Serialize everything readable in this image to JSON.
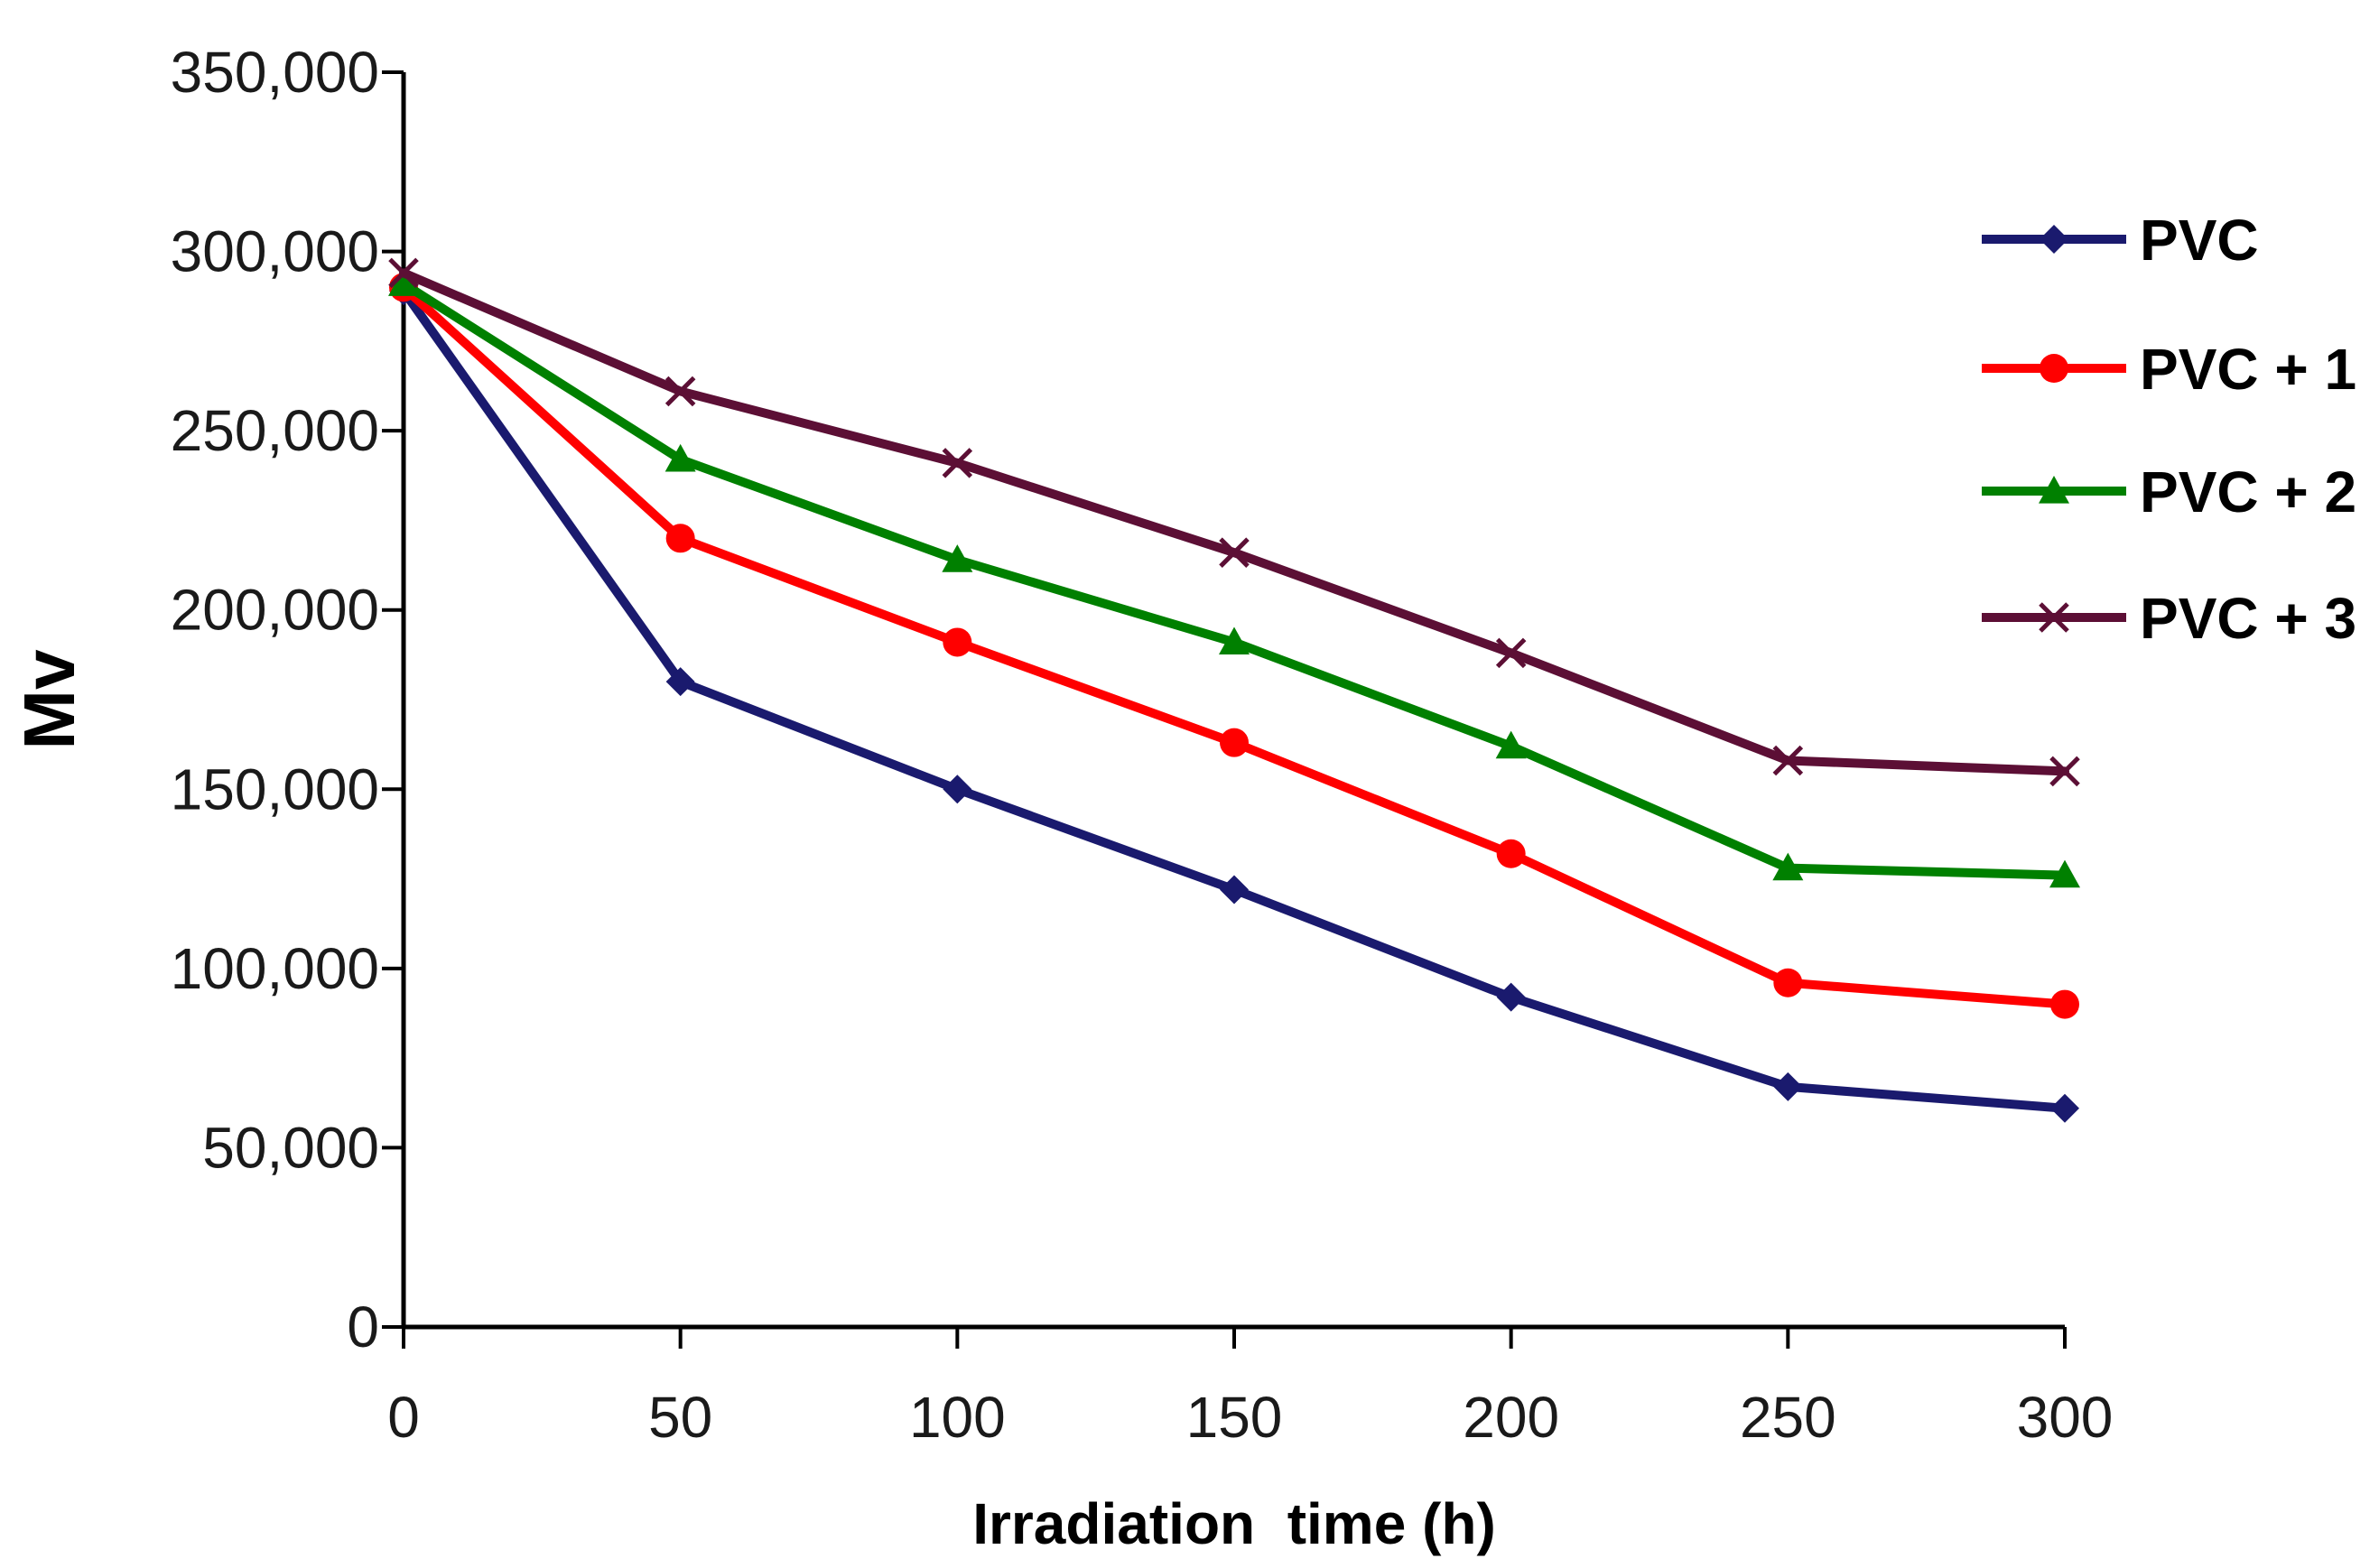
{
  "chart_data": {
    "type": "line",
    "title": "",
    "xlabel": "Irradiation  time (h)",
    "ylabel": "Mv",
    "x": [
      0,
      50,
      100,
      150,
      200,
      250,
      300
    ],
    "xlim": [
      0,
      300
    ],
    "ylim": [
      0,
      350000
    ],
    "x_ticks": [
      "0",
      "50",
      "100",
      "150",
      "200",
      "250",
      "300"
    ],
    "y_ticks": [
      "0",
      "50,000",
      "100,000",
      "150,000",
      "200,000",
      "250,000",
      "300,000",
      "350,000"
    ],
    "grid": false,
    "legend_position": "right",
    "series": [
      {
        "name": "PVC",
        "color": "#1a1a6e",
        "marker": "diamond",
        "values": [
          289000,
          180000,
          150000,
          122000,
          92000,
          67000,
          61000
        ]
      },
      {
        "name": "PVC + 1",
        "color": "#ff0000",
        "marker": "circle",
        "values": [
          290000,
          220000,
          191000,
          163000,
          132000,
          96000,
          90000
        ]
      },
      {
        "name": "PVC + 2",
        "color": "#008000",
        "marker": "triangle",
        "values": [
          291000,
          242000,
          214000,
          191000,
          162000,
          128000,
          126000
        ]
      },
      {
        "name": "PVC + 3",
        "color": "#5c0f35",
        "marker": "x",
        "values": [
          294000,
          261000,
          241000,
          216000,
          188000,
          158000,
          155000
        ]
      }
    ]
  }
}
